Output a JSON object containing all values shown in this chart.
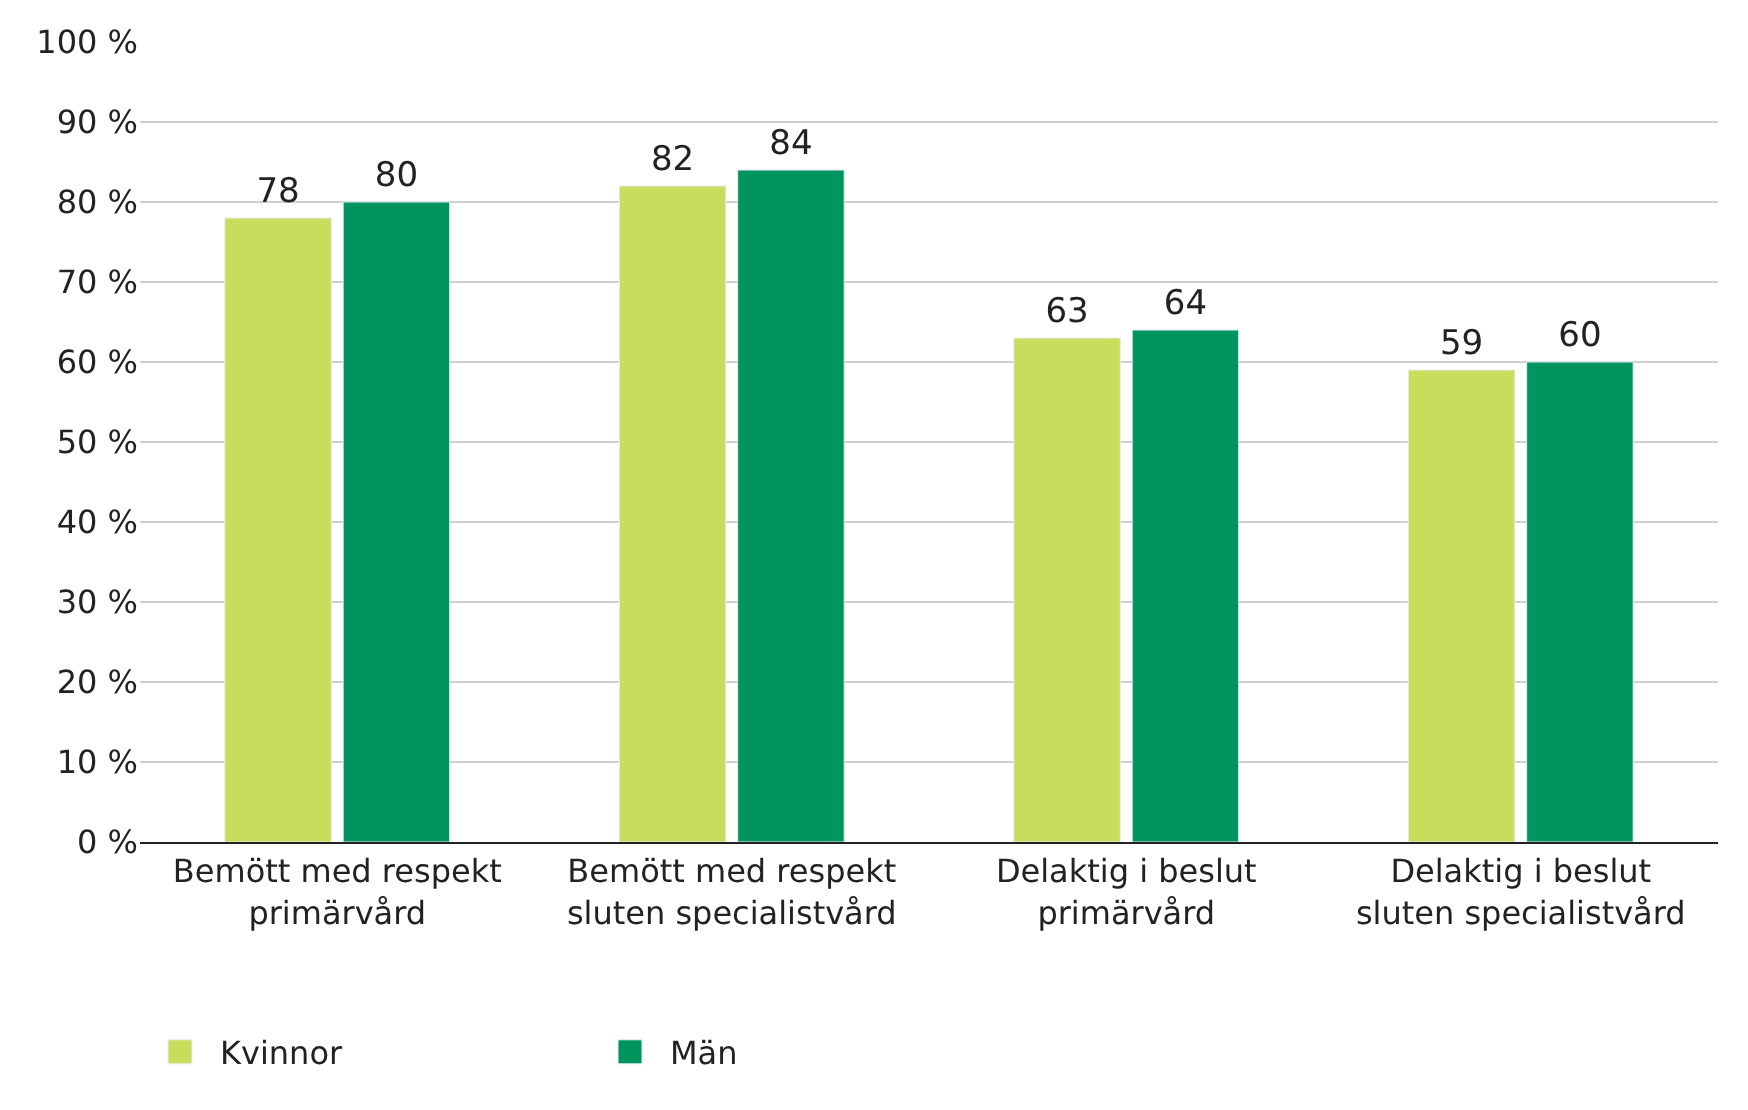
{
  "chart_data": {
    "type": "bar",
    "categories": [
      "Bemött med respekt\nprimärvård",
      "Bemött med respekt\nsluten specialistvård",
      "Delaktig i beslut\nprimärvård",
      "Delaktig i beslut\nsluten specialistvård"
    ],
    "series": [
      {
        "name": "Kvinnor",
        "color": "#c9dc5b",
        "values": [
          78,
          82,
          63,
          59
        ]
      },
      {
        "name": "Män",
        "color": "#00945f",
        "values": [
          80,
          84,
          64,
          60
        ]
      }
    ],
    "ylim": [
      0,
      100
    ],
    "yticks": [
      {
        "value": 0,
        "label": "0 %"
      },
      {
        "value": 10,
        "label": "10 %"
      },
      {
        "value": 20,
        "label": "20 %"
      },
      {
        "value": 30,
        "label": "30 %"
      },
      {
        "value": 40,
        "label": "40 %"
      },
      {
        "value": 50,
        "label": "50 %"
      },
      {
        "value": 60,
        "label": "60 %"
      },
      {
        "value": 70,
        "label": "70 %"
      },
      {
        "value": 80,
        "label": "80 %"
      },
      {
        "value": 90,
        "label": "90 %"
      },
      {
        "value": 100,
        "label": "100 %"
      }
    ],
    "grid": "y",
    "legend": "bottom left",
    "data_labels": true
  }
}
